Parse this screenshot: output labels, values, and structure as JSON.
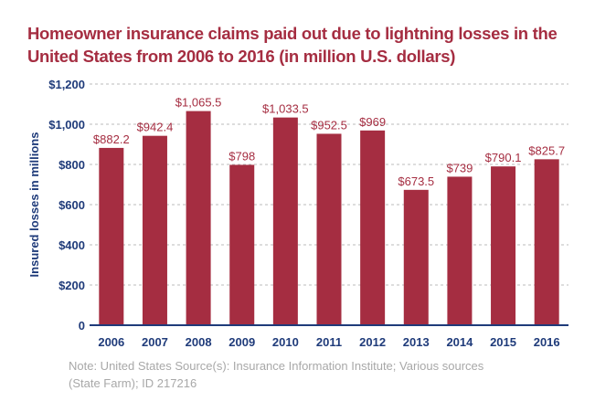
{
  "chart_data": {
    "type": "bar",
    "title": "Homeowner insurance claims paid out due to lightning losses in the United States from 2006 to 2016 (in million U.S. dollars)",
    "xlabel": "",
    "ylabel": "Insured losses in millions",
    "categories": [
      "2006",
      "2007",
      "2008",
      "2009",
      "2010",
      "2011",
      "2012",
      "2013",
      "2014",
      "2015",
      "2016"
    ],
    "values": [
      882.2,
      942.4,
      1065.5,
      798,
      1033.5,
      952.5,
      969,
      673.5,
      739,
      790.1,
      825.7
    ],
    "data_labels": [
      "$882.2",
      "$942.4",
      "$1,065.5",
      "$798",
      "$1,033.5",
      "$952.5",
      "$969",
      "$673.5",
      "$739",
      "$790.1",
      "$825.7"
    ],
    "ylim": [
      0,
      1200
    ],
    "yticks": [
      0,
      200,
      400,
      600,
      800,
      1000,
      1200
    ],
    "ytick_labels": [
      "0",
      "$200",
      "$400",
      "$600",
      "$800",
      "$1,000",
      "$1,200"
    ],
    "grid": true,
    "colors": {
      "bar": "#a52d41",
      "axis": "#1f3b7a",
      "title": "#a52d41"
    }
  },
  "note": {
    "line1": "Note: United States  Source(s): Insurance Information Institute; Various sources",
    "line2": "(State Farm); ID 217216"
  }
}
